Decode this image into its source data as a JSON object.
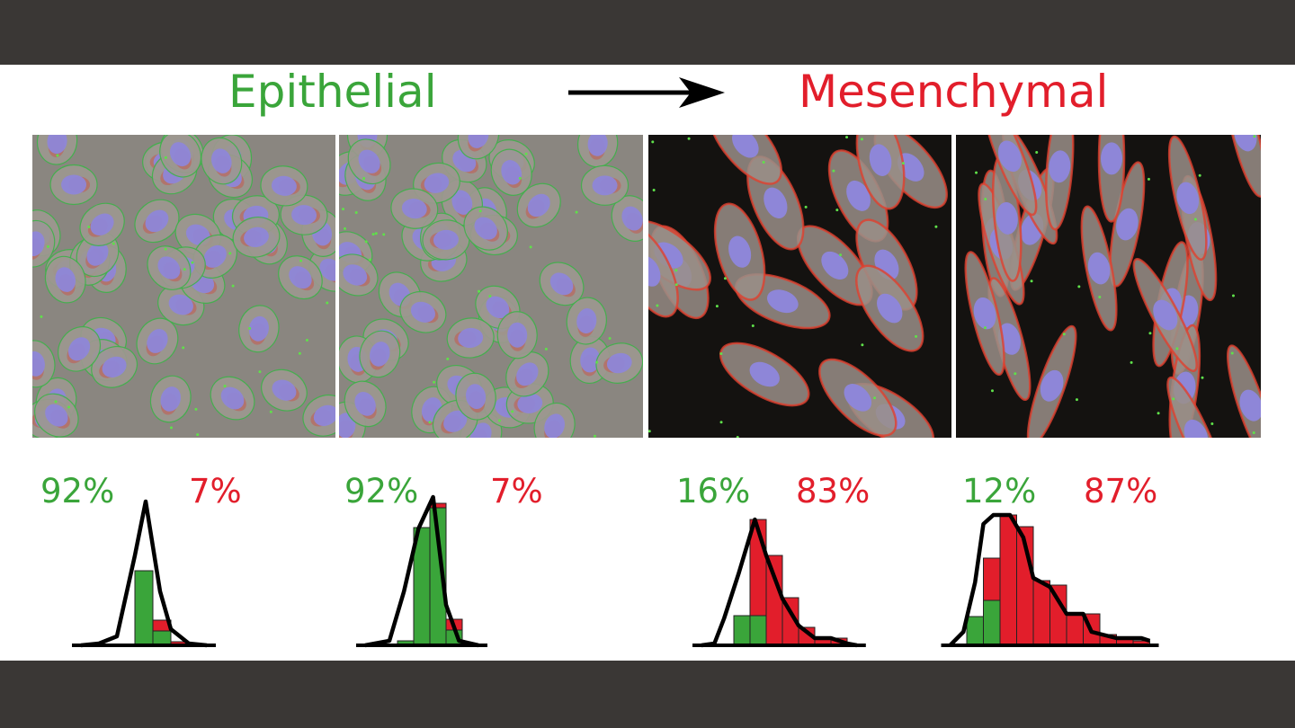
{
  "header": {
    "left_title": "Epithelial",
    "right_title": "Mesenchymal",
    "arrow_icon": "right-arrow-icon"
  },
  "colors": {
    "epithelial": "#3aa53a",
    "mesenchymal": "#e21e2b",
    "frame": "#3a3735"
  },
  "panels": [
    {
      "style": "epithelial-dense",
      "green_pct": "92%",
      "red_pct": "7%"
    },
    {
      "style": "epithelial",
      "green_pct": "92%",
      "red_pct": "7%"
    },
    {
      "style": "mesenchymal",
      "green_pct": "16%",
      "red_pct": "83%"
    },
    {
      "style": "mesenchymal-elongated",
      "green_pct": "12%",
      "red_pct": "87%"
    }
  ],
  "chart_data": [
    {
      "type": "bar",
      "stacked": true,
      "series": [
        {
          "values": [
            0,
            83,
            16,
            0
          ]
        },
        {
          "values": [
            0,
            0,
            12,
            4
          ]
        }
      ],
      "curve": [
        [
          -2,
          0
        ],
        [
          -1,
          2
        ],
        [
          0,
          10
        ],
        [
          1,
          100
        ],
        [
          1.6,
          160
        ],
        [
          2.4,
          60
        ],
        [
          3,
          18
        ],
        [
          4,
          2
        ],
        [
          5,
          0
        ]
      ]
    },
    {
      "type": "bar",
      "stacked": true,
      "series": [
        {
          "values": [
            5,
            131,
            153,
            17
          ]
        },
        {
          "values": [
            0,
            0,
            5,
            12
          ]
        }
      ],
      "curve": [
        [
          -2,
          0
        ],
        [
          -0.5,
          5
        ],
        [
          0.4,
          60
        ],
        [
          1.3,
          130
        ],
        [
          2.2,
          165
        ],
        [
          3,
          45
        ],
        [
          3.8,
          5
        ],
        [
          5,
          0
        ]
      ]
    },
    {
      "type": "bar",
      "stacked": true,
      "series": [
        {
          "values": [
            33,
            33,
            0,
            0,
            0,
            0,
            0
          ]
        },
        {
          "values": [
            0,
            107,
            100,
            53,
            20,
            7,
            8
          ]
        }
      ],
      "curve": [
        [
          -2,
          0
        ],
        [
          -1.2,
          2
        ],
        [
          -0.6,
          30
        ],
        [
          0.3,
          80
        ],
        [
          1.3,
          140
        ],
        [
          2,
          100
        ],
        [
          3,
          52
        ],
        [
          4,
          22
        ],
        [
          5,
          8
        ],
        [
          6,
          8
        ],
        [
          7,
          2
        ],
        [
          7.6,
          0
        ]
      ]
    },
    {
      "type": "bar",
      "stacked": true,
      "series": [
        {
          "values": [
            32,
            50,
            0,
            0,
            0,
            0,
            0,
            0,
            0,
            0,
            0
          ]
        },
        {
          "values": [
            0,
            47,
            145,
            132,
            72,
            67,
            35,
            35,
            12,
            8,
            5
          ]
        }
      ],
      "curve": [
        [
          -1,
          0
        ],
        [
          -0.2,
          15
        ],
        [
          0.5,
          70
        ],
        [
          1,
          135
        ],
        [
          1.6,
          145
        ],
        [
          2.6,
          145
        ],
        [
          3.4,
          120
        ],
        [
          4,
          75
        ],
        [
          5,
          65
        ],
        [
          6,
          35
        ],
        [
          7,
          35
        ],
        [
          7.5,
          15
        ],
        [
          9,
          8
        ],
        [
          10.5,
          8
        ],
        [
          11,
          5
        ]
      ]
    }
  ]
}
